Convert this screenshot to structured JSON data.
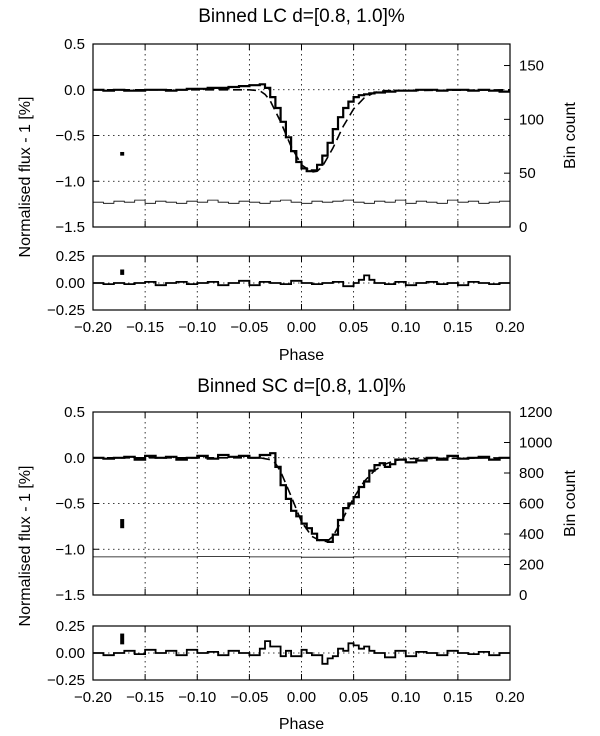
{
  "chart_data": [
    {
      "type": "line",
      "title": "Binned LC d=[0.8, 1.0]%",
      "xlabel": "Phase",
      "xlim": [
        -0.2,
        0.2
      ],
      "xticks": [
        "−0.20",
        "−0.15",
        "−0.10",
        "−0.05",
        "0.00",
        "0.05",
        "0.10",
        "0.15",
        "0.20"
      ],
      "main": {
        "ylabel": "Normalised flux - 1 [%]",
        "ylim": [
          -1.5,
          0.5
        ],
        "yticks": [
          "0.5",
          "0.0",
          "−0.5",
          "−1.0",
          "−1.5"
        ],
        "y2label": "Bin count",
        "y2lim": [
          0,
          170
        ],
        "y2ticks": [
          "0",
          "50",
          "100",
          "150"
        ],
        "error_bar": {
          "x": -0.172,
          "y": -0.7,
          "half": 0.02
        },
        "series": [
          {
            "style": "step",
            "y_axis": "left",
            "x": [
              -0.2,
              -0.19,
              -0.18,
              -0.17,
              -0.16,
              -0.15,
              -0.14,
              -0.13,
              -0.12,
              -0.11,
              -0.1,
              -0.09,
              -0.08,
              -0.07,
              -0.06,
              -0.05,
              -0.04,
              -0.035,
              -0.03,
              -0.025,
              -0.02,
              -0.015,
              -0.01,
              -0.005,
              0.0,
              0.005,
              0.01,
              0.015,
              0.02,
              0.025,
              0.03,
              0.035,
              0.04,
              0.045,
              0.05,
              0.055,
              0.06,
              0.065,
              0.07,
              0.08,
              0.09,
              0.1,
              0.11,
              0.12,
              0.13,
              0.14,
              0.15,
              0.16,
              0.17,
              0.18,
              0.19,
              0.2
            ],
            "y": [
              0.0,
              -0.01,
              0.0,
              -0.01,
              -0.01,
              0.0,
              0.0,
              -0.01,
              0.0,
              0.01,
              0.01,
              0.02,
              0.02,
              0.03,
              0.04,
              0.05,
              0.06,
              0.02,
              -0.08,
              -0.2,
              -0.35,
              -0.52,
              -0.67,
              -0.79,
              -0.86,
              -0.89,
              -0.88,
              -0.82,
              -0.72,
              -0.58,
              -0.43,
              -0.3,
              -0.2,
              -0.13,
              -0.08,
              -0.06,
              -0.05,
              -0.04,
              -0.03,
              -0.02,
              -0.01,
              -0.01,
              0.0,
              0.0,
              -0.01,
              0.0,
              0.0,
              -0.01,
              0.0,
              -0.01,
              -0.02,
              -0.01
            ]
          },
          {
            "style": "dashed",
            "y_axis": "left",
            "x": [
              -0.2,
              -0.05,
              -0.04,
              -0.035,
              -0.03,
              -0.02,
              -0.01,
              0.0,
              0.01,
              0.015,
              0.02,
              0.03,
              0.04,
              0.05,
              0.06,
              0.07,
              0.08,
              0.2
            ],
            "y": [
              0.0,
              0.0,
              -0.01,
              -0.05,
              -0.12,
              -0.35,
              -0.62,
              -0.82,
              -0.9,
              -0.89,
              -0.84,
              -0.64,
              -0.4,
              -0.21,
              -0.09,
              -0.03,
              -0.01,
              0.0
            ]
          },
          {
            "style": "thin-step",
            "y_axis": "right",
            "x": [
              -0.2,
              -0.19,
              -0.18,
              -0.17,
              -0.16,
              -0.15,
              -0.14,
              -0.13,
              -0.12,
              -0.11,
              -0.1,
              -0.09,
              -0.08,
              -0.07,
              -0.06,
              -0.05,
              -0.04,
              -0.03,
              -0.02,
              -0.01,
              0.0,
              0.01,
              0.02,
              0.03,
              0.04,
              0.05,
              0.06,
              0.07,
              0.08,
              0.09,
              0.1,
              0.11,
              0.12,
              0.13,
              0.14,
              0.15,
              0.16,
              0.17,
              0.18,
              0.19,
              0.2
            ],
            "y": [
              23,
              22,
              24,
              23,
              25,
              22,
              24,
              23,
              22,
              24,
              23,
              25,
              23,
              22,
              24,
              23,
              22,
              24,
              25,
              23,
              22,
              24,
              23,
              24,
              25,
              23,
              22,
              24,
              23,
              25,
              22,
              24,
              23,
              22,
              25,
              23,
              24,
              22,
              23,
              24,
              23
            ]
          }
        ]
      },
      "residual": {
        "ylim": [
          -0.25,
          0.25
        ],
        "yticks": [
          "0.25",
          "0.00",
          "−0.25"
        ],
        "error_bar": {
          "x": -0.172,
          "y": 0.1,
          "half": 0.025
        },
        "series": [
          {
            "style": "step",
            "x": [
              -0.2,
              -0.19,
              -0.18,
              -0.17,
              -0.16,
              -0.15,
              -0.14,
              -0.13,
              -0.12,
              -0.11,
              -0.1,
              -0.09,
              -0.08,
              -0.07,
              -0.06,
              -0.05,
              -0.04,
              -0.03,
              -0.02,
              -0.01,
              0.0,
              0.01,
              0.02,
              0.03,
              0.04,
              0.05,
              0.055,
              0.06,
              0.065,
              0.07,
              0.08,
              0.09,
              0.1,
              0.11,
              0.12,
              0.13,
              0.14,
              0.15,
              0.16,
              0.17,
              0.18,
              0.19,
              0.2
            ],
            "y": [
              0.0,
              -0.01,
              0.0,
              -0.01,
              0.0,
              0.01,
              -0.02,
              0.0,
              0.01,
              -0.01,
              0.0,
              0.01,
              -0.02,
              0.0,
              0.02,
              -0.02,
              0.01,
              0.0,
              -0.01,
              0.02,
              0.0,
              -0.01,
              0.0,
              0.01,
              -0.03,
              0.0,
              0.03,
              0.07,
              0.03,
              0.0,
              -0.01,
              0.01,
              -0.02,
              0.0,
              0.01,
              -0.01,
              0.0,
              -0.02,
              0.01,
              0.0,
              -0.01,
              0.0,
              -0.01
            ]
          }
        ]
      }
    },
    {
      "type": "line",
      "title": "Binned SC d=[0.8, 1.0]%",
      "xlabel": "Phase",
      "xlim": [
        -0.2,
        0.2
      ],
      "xticks": [
        "−0.20",
        "−0.15",
        "−0.10",
        "−0.05",
        "0.00",
        "0.05",
        "0.10",
        "0.15",
        "0.20"
      ],
      "main": {
        "ylabel": "Normalised flux - 1 [%]",
        "ylim": [
          -1.5,
          0.5
        ],
        "yticks": [
          "0.5",
          "0.0",
          "−0.5",
          "−1.0",
          "−1.5"
        ],
        "y2label": "Bin count",
        "y2lim": [
          0,
          1200
        ],
        "y2ticks": [
          "0",
          "200",
          "400",
          "600",
          "800",
          "1000",
          "1200"
        ],
        "error_bar": {
          "x": -0.172,
          "y": -0.72,
          "half": 0.05
        },
        "series": [
          {
            "style": "step",
            "y_axis": "left",
            "x": [
              -0.2,
              -0.19,
              -0.18,
              -0.17,
              -0.16,
              -0.15,
              -0.14,
              -0.13,
              -0.12,
              -0.11,
              -0.1,
              -0.09,
              -0.08,
              -0.07,
              -0.06,
              -0.05,
              -0.04,
              -0.03,
              -0.025,
              -0.02,
              -0.015,
              -0.01,
              -0.005,
              0.0,
              0.005,
              0.01,
              0.015,
              0.02,
              0.025,
              0.03,
              0.035,
              0.04,
              0.045,
              0.05,
              0.055,
              0.06,
              0.065,
              0.07,
              0.075,
              0.08,
              0.085,
              0.09,
              0.1,
              0.11,
              0.12,
              0.13,
              0.14,
              0.15,
              0.16,
              0.17,
              0.18,
              0.19,
              0.2
            ],
            "y": [
              0.0,
              -0.01,
              0.0,
              0.01,
              -0.02,
              0.02,
              0.0,
              0.01,
              -0.02,
              0.0,
              0.02,
              -0.01,
              0.03,
              0.01,
              0.02,
              0.0,
              0.03,
              0.05,
              -0.1,
              -0.3,
              -0.45,
              -0.58,
              -0.64,
              -0.72,
              -0.77,
              -0.83,
              -0.9,
              -0.9,
              -0.92,
              -0.84,
              -0.68,
              -0.55,
              -0.5,
              -0.43,
              -0.32,
              -0.26,
              -0.14,
              -0.08,
              -0.06,
              -0.1,
              -0.07,
              -0.02,
              -0.05,
              -0.03,
              0.0,
              -0.02,
              0.02,
              -0.01,
              0.0,
              0.01,
              -0.02,
              0.0,
              -0.01
            ]
          },
          {
            "style": "dashed",
            "y_axis": "left",
            "x": [
              -0.2,
              -0.04,
              -0.03,
              -0.025,
              -0.02,
              -0.01,
              0.0,
              0.01,
              0.02,
              0.025,
              0.03,
              0.04,
              0.05,
              0.06,
              0.07,
              0.08,
              0.09,
              0.1,
              0.2
            ],
            "y": [
              0.0,
              0.0,
              -0.02,
              -0.06,
              -0.15,
              -0.42,
              -0.7,
              -0.86,
              -0.92,
              -0.91,
              -0.86,
              -0.66,
              -0.44,
              -0.26,
              -0.14,
              -0.07,
              -0.03,
              -0.01,
              0.0
            ]
          },
          {
            "style": "thin-step",
            "y_axis": "right",
            "x": [
              -0.2,
              -0.1,
              -0.05,
              0.0,
              0.05,
              0.1,
              0.15,
              0.2
            ],
            "y": [
              250,
              252,
              250,
              248,
              250,
              252,
              250,
              248
            ]
          }
        ]
      },
      "residual": {
        "ylim": [
          -0.25,
          0.25
        ],
        "yticks": [
          "0.25",
          "0.00",
          "−0.25"
        ],
        "error_bar": {
          "x": -0.172,
          "y": 0.13,
          "half": 0.05
        },
        "series": [
          {
            "style": "step",
            "x": [
              -0.2,
              -0.19,
              -0.18,
              -0.17,
              -0.16,
              -0.15,
              -0.14,
              -0.13,
              -0.12,
              -0.11,
              -0.1,
              -0.09,
              -0.08,
              -0.07,
              -0.06,
              -0.05,
              -0.04,
              -0.035,
              -0.03,
              -0.02,
              -0.015,
              -0.01,
              0.0,
              0.005,
              0.01,
              0.02,
              0.025,
              0.03,
              0.035,
              0.04,
              0.045,
              0.05,
              0.055,
              0.06,
              0.065,
              0.07,
              0.08,
              0.09,
              0.1,
              0.11,
              0.12,
              0.13,
              0.14,
              0.15,
              0.16,
              0.17,
              0.18,
              0.19,
              0.2
            ],
            "y": [
              0.0,
              -0.02,
              0.0,
              0.02,
              -0.01,
              0.03,
              0.0,
              0.02,
              -0.02,
              0.03,
              0.0,
              0.01,
              -0.02,
              0.02,
              0.0,
              -0.02,
              0.04,
              0.11,
              0.06,
              -0.03,
              0.02,
              -0.03,
              0.03,
              0.0,
              -0.02,
              -0.1,
              -0.05,
              -0.03,
              0.04,
              0.02,
              0.09,
              0.07,
              0.04,
              0.06,
              0.02,
              0.0,
              -0.04,
              0.02,
              -0.03,
              0.01,
              0.0,
              -0.02,
              0.02,
              0.0,
              -0.01,
              0.01,
              -0.02,
              0.0,
              -0.01
            ]
          }
        ]
      }
    }
  ]
}
